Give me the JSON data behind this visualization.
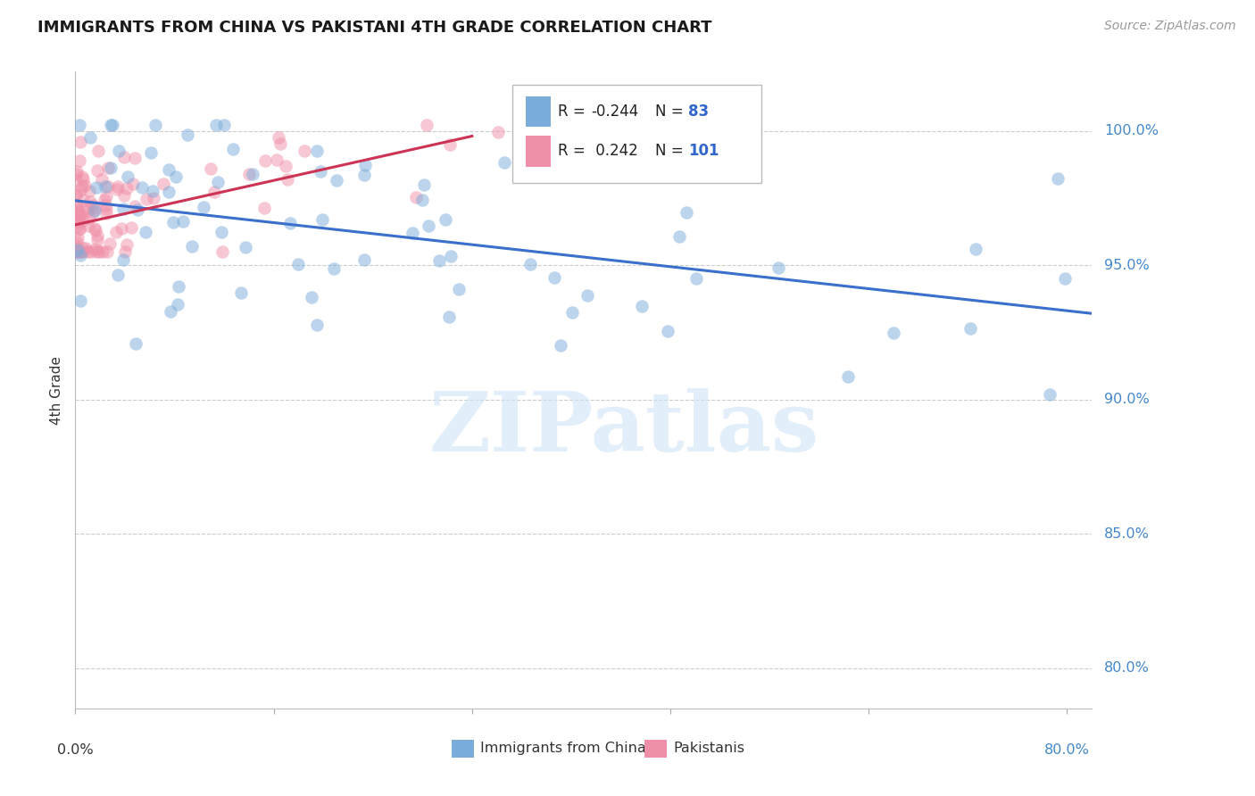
{
  "title": "IMMIGRANTS FROM CHINA VS PAKISTANI 4TH GRADE CORRELATION CHART",
  "source": "Source: ZipAtlas.com",
  "ylabel": "4th Grade",
  "ytick_labels": [
    "80.0%",
    "85.0%",
    "90.0%",
    "95.0%",
    "100.0%"
  ],
  "ytick_values": [
    0.8,
    0.85,
    0.9,
    0.95,
    1.0
  ],
  "xlim": [
    0.0,
    0.82
  ],
  "ylim": [
    0.785,
    1.022
  ],
  "china_color": "#7aadda",
  "pakistan_color": "#f090a8",
  "china_R": "-0.244",
  "china_N": "83",
  "pakistan_R": "0.242",
  "pakistan_N": "101",
  "legend_label_china": "Immigrants from China",
  "legend_label_pakistan": "Pakistanis",
  "watermark_text": "ZIPatlas",
  "china_line_x": [
    0.0,
    0.82
  ],
  "china_line_y": [
    0.974,
    0.932
  ],
  "pakistan_line_x": [
    0.0,
    0.32
  ],
  "pakistan_line_y": [
    0.965,
    0.998
  ],
  "legend_R_color": "#222222",
  "legend_N_color": "#3366cc",
  "ytick_color": "#4488cc",
  "xtick_label_left_color": "#333333",
  "xtick_label_right_color": "#4488cc"
}
